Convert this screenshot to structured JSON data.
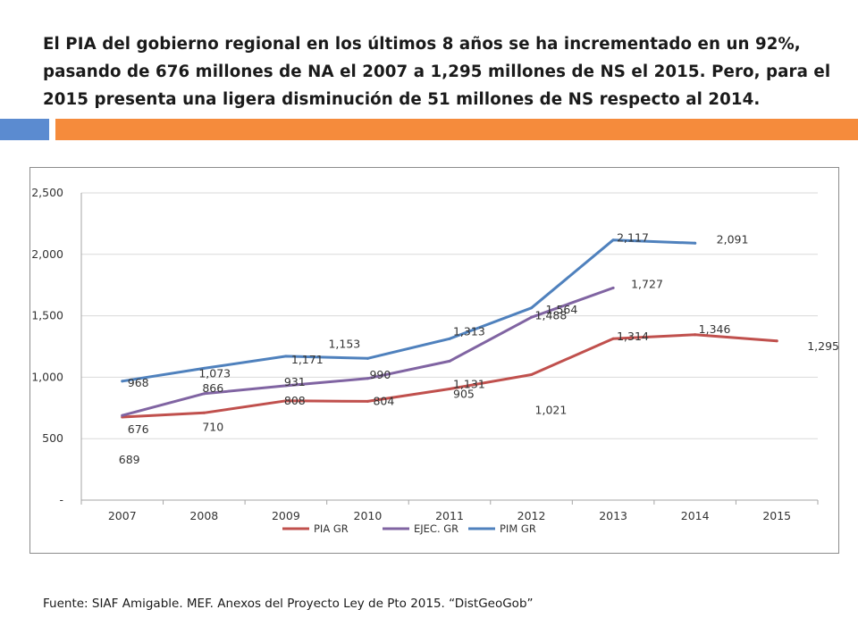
{
  "title": "El PIA del gobierno regional en los últimos 8 años se ha incrementado en un 92%, pasando de 676 millones de NA el 2007 a 1,295 millones de NS el 2015.  Pero, para el 2015 presenta una ligera disminución  de  51 millones de NS respecto al 2014.",
  "source": "Fuente: SIAF Amigable. MEF. Anexos del Proyecto Ley de Pto 2015. “DistGeoGob”",
  "colors": {
    "accent_blue": "#5b8bd0",
    "accent_orange": "#f58b3c",
    "pia": "#c0504d",
    "ejec": "#8064a2",
    "pim": "#4f81bd"
  },
  "chart_data": {
    "type": "line",
    "title": "",
    "xlabel": "",
    "ylabel": "",
    "categories": [
      "2007",
      "2008",
      "2009",
      "2010",
      "2011",
      "2012",
      "2013",
      "2014",
      "2015"
    ],
    "ylim": [
      0,
      2500
    ],
    "y_ticks": [
      0,
      500,
      1000,
      1500,
      2000,
      2500
    ],
    "y_tick_labels": [
      "-",
      "500",
      "1,000",
      "1,500",
      "2,000",
      "2,500"
    ],
    "grid": true,
    "legend_position": "bottom",
    "series": [
      {
        "name": "PIA GR",
        "color": "#c0504d",
        "values": [
          676,
          710,
          808,
          804,
          905,
          1021,
          1314,
          1346,
          1295
        ],
        "labels": [
          "676",
          "710",
          "808",
          "804",
          "905",
          "1,021",
          "1,314",
          "1,346",
          "1,295"
        ]
      },
      {
        "name": "EJEC. GR",
        "color": "#8064a2",
        "values": [
          689,
          866,
          931,
          990,
          1131,
          1488,
          1727,
          null,
          null
        ],
        "labels": [
          "689",
          "866",
          "931",
          "990",
          "1,131",
          "1,488",
          "1,727",
          null,
          null
        ]
      },
      {
        "name": "PIM GR",
        "color": "#4f81bd",
        "values": [
          968,
          1073,
          1171,
          1153,
          1313,
          1564,
          2117,
          2091,
          null
        ],
        "labels": [
          "968",
          "1,073",
          "1,171",
          "1,153",
          "1,313",
          "1,564",
          "2,117",
          "2,091",
          null
        ]
      }
    ]
  }
}
